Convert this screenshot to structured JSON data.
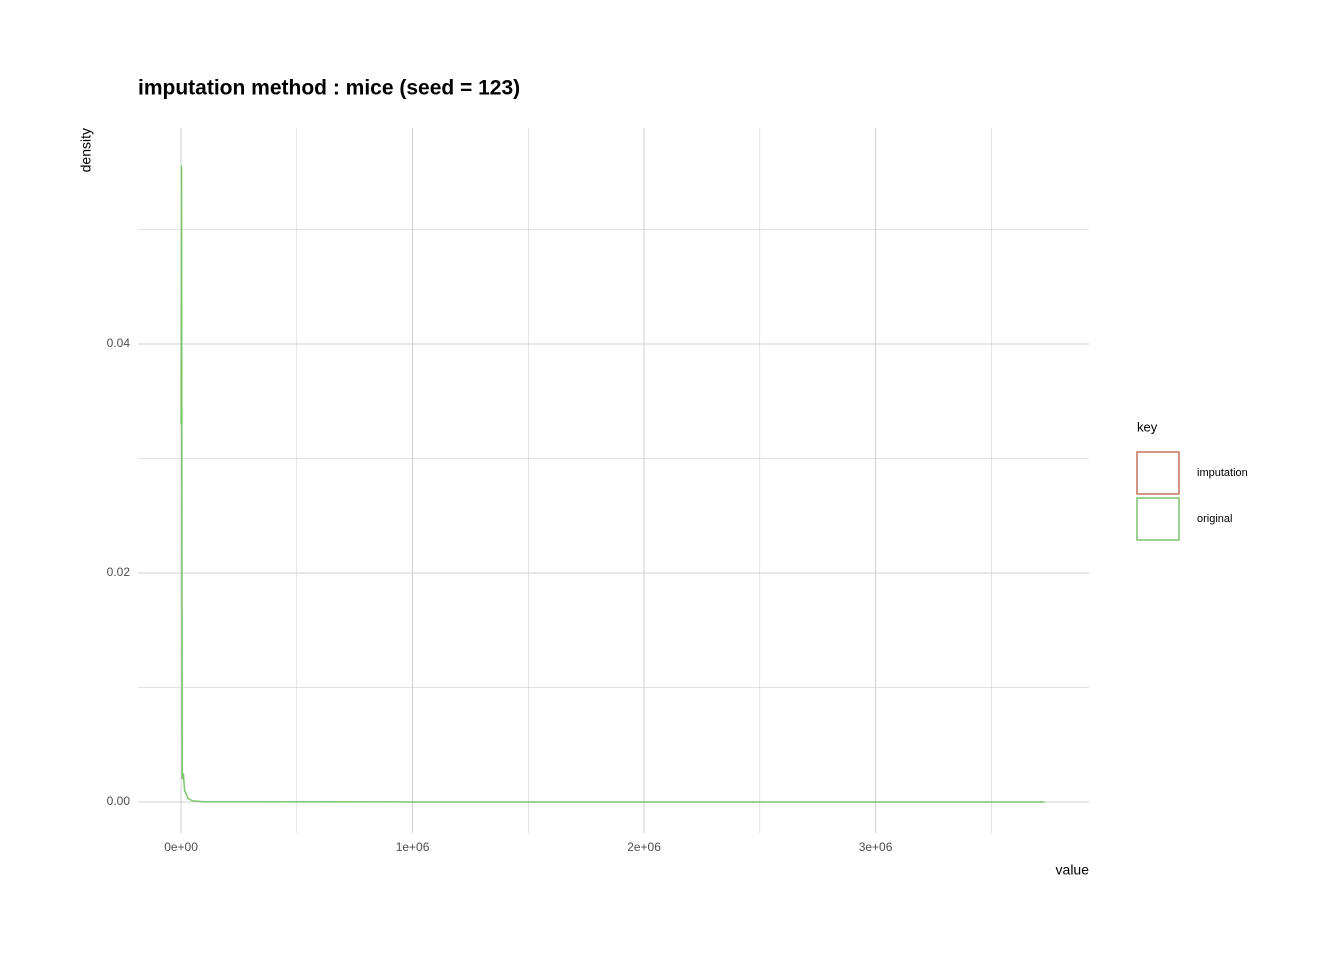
{
  "chart_data": {
    "type": "line",
    "title": "imputation method : mice (seed = 123)",
    "x_label": "value",
    "y_label": "density",
    "legend_title": "key",
    "legend": "right",
    "series": [
      {
        "name": "imputation",
        "color": "#c8735f",
        "x": [],
        "values": []
      },
      {
        "name": "original",
        "color": "#7cc46b",
        "x": [
          0,
          2000,
          5000,
          10000,
          15000,
          20000,
          30000,
          50000,
          100000,
          1000000,
          2000000,
          3000000,
          3730000
        ],
        "values": [
          0.033,
          0.0556,
          0.002,
          0.0025,
          0.001,
          0.0008,
          0.0003,
          0.0001,
          2e-05,
          0,
          0,
          0,
          0
        ]
      }
    ],
    "xlim": [
      -186000,
      3922000
    ],
    "xticks": [
      {
        "value": 0,
        "label": "0e+00"
      },
      {
        "value": 1000000,
        "label": "1e+06"
      },
      {
        "value": 2000000,
        "label": "2e+06"
      },
      {
        "value": 3000000,
        "label": "3e+06"
      }
    ],
    "x_minor_grid": [
      500000,
      1500000,
      2500000,
      3500000
    ],
    "ylim": [
      -0.00271,
      0.05886
    ],
    "yticks": [
      {
        "value": 0,
        "label": "0.00"
      },
      0.02,
      0.04
    ],
    "y_minor_grid": [
      0.01,
      0.03,
      0.05
    ],
    "grid": true
  }
}
